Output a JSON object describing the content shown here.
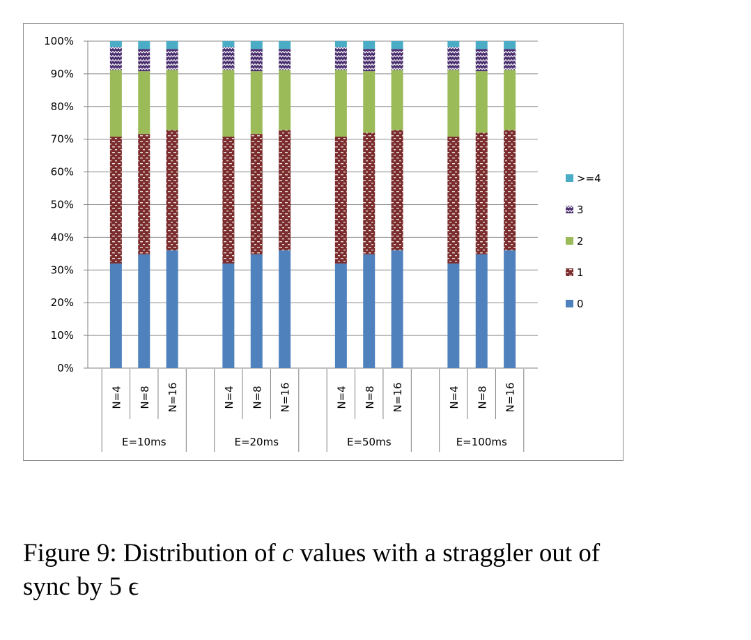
{
  "chart_data": {
    "type": "bar",
    "stacked": true,
    "normalized": true,
    "ylim": [
      0,
      100
    ],
    "yticks": [
      "0%",
      "10%",
      "20%",
      "30%",
      "40%",
      "50%",
      "60%",
      "70%",
      "80%",
      "90%",
      "100%"
    ],
    "groups": [
      "E=10ms",
      "E=20ms",
      "E=50ms",
      "E=100ms"
    ],
    "categories": [
      "N=4",
      "N=8",
      "N=16"
    ],
    "legend_position": "right",
    "grid": true,
    "series": [
      {
        "name": "0",
        "color": "#4f81bd",
        "pattern": "solid",
        "values": [
          [
            32,
            34.8,
            36
          ],
          [
            32,
            34.8,
            36
          ],
          [
            32,
            34.8,
            36
          ],
          [
            32,
            34.8,
            36
          ]
        ]
      },
      {
        "name": "1",
        "color": "#7b2c2c",
        "pattern": "dashes",
        "values": [
          [
            38.8,
            36.8,
            36.8
          ],
          [
            38.8,
            36.8,
            36.8
          ],
          [
            38.8,
            37.2,
            36.8
          ],
          [
            38.8,
            37.2,
            36.8
          ]
        ]
      },
      {
        "name": "2",
        "color": "#9bbb59",
        "pattern": "solid",
        "values": [
          [
            20.4,
            19.2,
            18.4
          ],
          [
            20.4,
            19.2,
            18.4
          ],
          [
            20.4,
            18.8,
            18.4
          ],
          [
            20.4,
            18.8,
            18.4
          ]
        ]
      },
      {
        "name": "3",
        "color": "#4a2e6e",
        "pattern": "zigzag",
        "values": [
          [
            7,
            6.8,
            6.4
          ],
          [
            7,
            6.8,
            6.4
          ],
          [
            7,
            6.8,
            6.4
          ],
          [
            7,
            6.8,
            6.4
          ]
        ]
      },
      {
        "name": ">=4",
        "color": "#4bacc6",
        "pattern": "solid",
        "values": [
          [
            1.8,
            2.4,
            2.4
          ],
          [
            1.8,
            2.4,
            2.4
          ],
          [
            1.8,
            2.4,
            2.4
          ],
          [
            1.8,
            2.4,
            2.4
          ]
        ]
      }
    ]
  },
  "caption": {
    "prefix": "Figure 9: Distribution of ",
    "variable": "c",
    "middle": " values with a straggler out of",
    "line2": "sync by 5 ϵ"
  }
}
